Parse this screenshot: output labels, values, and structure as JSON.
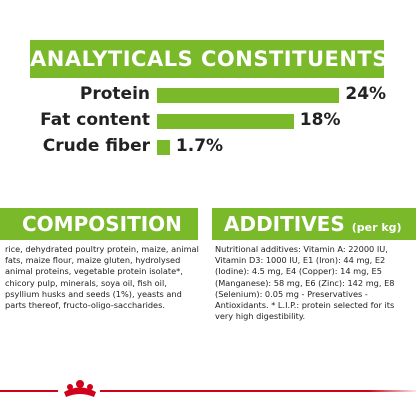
{
  "analyticals": {
    "title": "ANALYTICALS CONSTITUENTS",
    "rows": [
      {
        "label": "Protein",
        "value": 24,
        "value_label": "24%"
      },
      {
        "label": "Fat content",
        "value": 18,
        "value_label": "18%"
      },
      {
        "label": "Crude fiber",
        "value": 1.7,
        "value_label": "1.7%"
      }
    ]
  },
  "composition": {
    "title": "COMPOSITION",
    "text": "rice, dehydrated poultry protein, maize, animal fats, maize flour, maize gluten, hydrolysed animal proteins, vegetable protein isolate*, chicory pulp, minerals, soya oil, fish oil, psyllium husks and seeds (1%), yeasts and parts thereof, fructo-oligo-saccharides."
  },
  "additives": {
    "title": "ADDITIVES",
    "unit": "(per kg)",
    "text": "Nutritional additives: Vitamin A: 22000 IU, Vitamin D3: 1000 IU, E1 (Iron): 44 mg, E2 (Iodine): 4.5 mg, E4 (Copper): 14 mg, E5 (Manganese): 58 mg, E6 (Zinc): 142 mg, E8 (Selenium): 0.05 mg - Preservatives - Antioxidants. * L.I.P.: protein selected for its very high digestibility."
  }
}
